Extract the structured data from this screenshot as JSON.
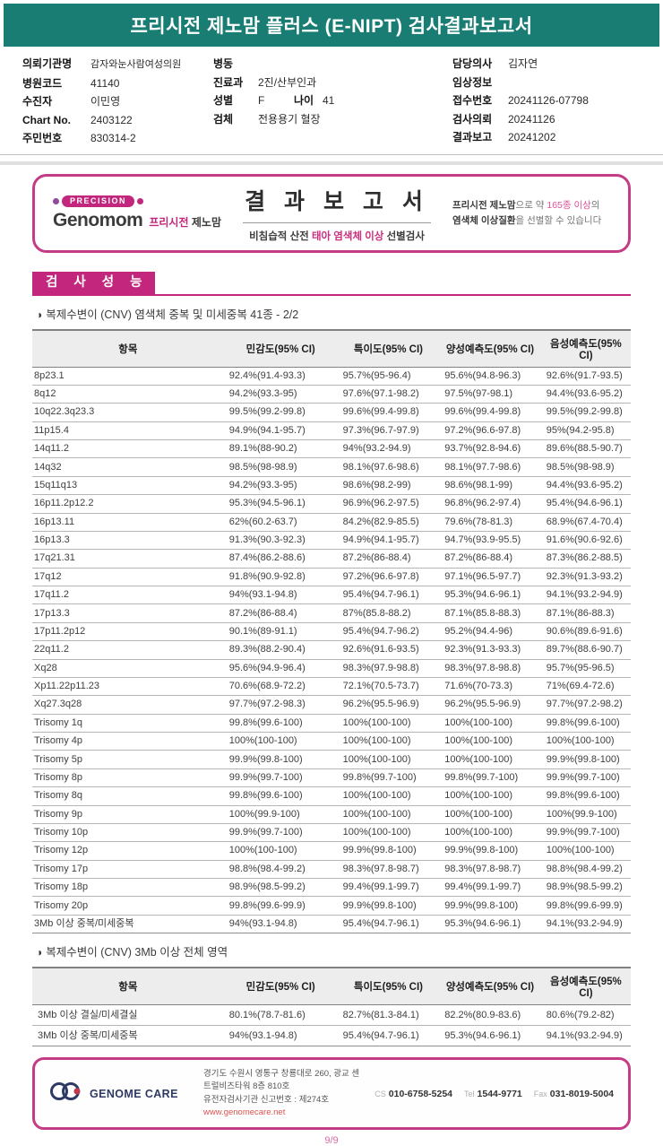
{
  "colors": {
    "header_teal": "#197d74",
    "brand_magenta": "#c2267d",
    "box_border_pink": "#c43c86",
    "highlight_pink": "#e0529c",
    "website_red": "#d9534f",
    "logo_navy": "#2e3a66"
  },
  "report": {
    "title": "프리시전 제노맘 플러스 (E-NIPT) 검사결과보고서",
    "page": "9/9"
  },
  "patient": {
    "col1": [
      {
        "label": "의뢰기관명",
        "value": "감자와눈사람여성의원"
      },
      {
        "label": "병원코드",
        "value": "41140"
      },
      {
        "label": "수진자",
        "value": "이민영"
      },
      {
        "label": "Chart No.",
        "value": "2403122"
      },
      {
        "label": "주민번호",
        "value": "830314-2"
      }
    ],
    "col2": [
      {
        "label": "병동",
        "value": ""
      },
      {
        "label": "진료과",
        "value": "2진/산부인과"
      },
      {
        "label": "성별",
        "value": "F",
        "label2": "나이",
        "value2": "41"
      },
      {
        "label": "검체",
        "value": "전용용기 혈장"
      }
    ],
    "col3": [
      {
        "label": "담당의사",
        "value": "김자연"
      },
      {
        "label": "임상정보",
        "value": ""
      },
      {
        "label": "접수번호",
        "value": "20241126-07798"
      },
      {
        "label": "검사의뢰",
        "value": "20241126"
      },
      {
        "label": "결과보고",
        "value": "20241202"
      }
    ]
  },
  "result_box": {
    "badge": "PRECISION",
    "brand_name": "Genomom",
    "brand_kr_magenta": "프리시전",
    "brand_kr_dark": "제노맘",
    "title": "결 과 보 고 서",
    "subtitle_prefix": "비침습적 산전 ",
    "subtitle_highlight": "태아 염색체 이상",
    "subtitle_suffix": " 선별검사",
    "promo_bold1": "프리시전 제노맘",
    "promo_text1": "으로 약 ",
    "promo_highlight": "165종 이상",
    "promo_text2": "의 ",
    "promo_bold2": "염색체 이상질환",
    "promo_text3": "을 선별할 수 있습니다"
  },
  "section": {
    "title": "검 사 성 능"
  },
  "table1": {
    "caption_bullet": "◑",
    "caption": "복제수변이 (CNV) 염색체 중복 및 미세중복 41종 - 2/2",
    "headers": [
      "항목",
      "민감도(95% CI)",
      "특이도(95% CI)",
      "양성예측도(95% CI)",
      "음성예측도(95% CI)"
    ],
    "rows": [
      [
        "8p23.1",
        "92.4%(91.4-93.3)",
        "95.7%(95-96.4)",
        "95.6%(94.8-96.3)",
        "92.6%(91.7-93.5)"
      ],
      [
        "8q12",
        "94.2%(93.3-95)",
        "97.6%(97.1-98.2)",
        "97.5%(97-98.1)",
        "94.4%(93.6-95.2)"
      ],
      [
        "10q22.3q23.3",
        "99.5%(99.2-99.8)",
        "99.6%(99.4-99.8)",
        "99.6%(99.4-99.8)",
        "99.5%(99.2-99.8)"
      ],
      [
        "11p15.4",
        "94.9%(94.1-95.7)",
        "97.3%(96.7-97.9)",
        "97.2%(96.6-97.8)",
        "95%(94.2-95.8)"
      ],
      [
        "14q11.2",
        "89.1%(88-90.2)",
        "94%(93.2-94.9)",
        "93.7%(92.8-94.6)",
        "89.6%(88.5-90.7)"
      ],
      [
        "14q32",
        "98.5%(98-98.9)",
        "98.1%(97.6-98.6)",
        "98.1%(97.7-98.6)",
        "98.5%(98-98.9)"
      ],
      [
        "15q11q13",
        "94.2%(93.3-95)",
        "98.6%(98.2-99)",
        "98.6%(98.1-99)",
        "94.4%(93.6-95.2)"
      ],
      [
        "16p11.2p12.2",
        "95.3%(94.5-96.1)",
        "96.9%(96.2-97.5)",
        "96.8%(96.2-97.4)",
        "95.4%(94.6-96.1)"
      ],
      [
        "16p13.11",
        "62%(60.2-63.7)",
        "84.2%(82.9-85.5)",
        "79.6%(78-81.3)",
        "68.9%(67.4-70.4)"
      ],
      [
        "16p13.3",
        "91.3%(90.3-92.3)",
        "94.9%(94.1-95.7)",
        "94.7%(93.9-95.5)",
        "91.6%(90.6-92.6)"
      ],
      [
        "17q21.31",
        "87.4%(86.2-88.6)",
        "87.2%(86-88.4)",
        "87.2%(86-88.4)",
        "87.3%(86.2-88.5)"
      ],
      [
        "17q12",
        "91.8%(90.9-92.8)",
        "97.2%(96.6-97.8)",
        "97.1%(96.5-97.7)",
        "92.3%(91.3-93.2)"
      ],
      [
        "17q11.2",
        "94%(93.1-94.8)",
        "95.4%(94.7-96.1)",
        "95.3%(94.6-96.1)",
        "94.1%(93.2-94.9)"
      ],
      [
        "17p13.3",
        "87.2%(86-88.4)",
        "87%(85.8-88.2)",
        "87.1%(85.8-88.3)",
        "87.1%(86-88.3)"
      ],
      [
        "17p11.2p12",
        "90.1%(89-91.1)",
        "95.4%(94.7-96.2)",
        "95.2%(94.4-96)",
        "90.6%(89.6-91.6)"
      ],
      [
        "22q11.2",
        "89.3%(88.2-90.4)",
        "92.6%(91.6-93.5)",
        "92.3%(91.3-93.3)",
        "89.7%(88.6-90.7)"
      ],
      [
        "Xq28",
        "95.6%(94.9-96.4)",
        "98.3%(97.9-98.8)",
        "98.3%(97.8-98.8)",
        "95.7%(95-96.5)"
      ],
      [
        "Xp11.22p11.23",
        "70.6%(68.9-72.2)",
        "72.1%(70.5-73.7)",
        "71.6%(70-73.3)",
        "71%(69.4-72.6)"
      ],
      [
        "Xq27.3q28",
        "97.7%(97.2-98.3)",
        "96.2%(95.5-96.9)",
        "96.2%(95.5-96.9)",
        "97.7%(97.2-98.2)"
      ],
      [
        "Trisomy 1q",
        "99.8%(99.6-100)",
        "100%(100-100)",
        "100%(100-100)",
        "99.8%(99.6-100)"
      ],
      [
        "Trisomy 4p",
        "100%(100-100)",
        "100%(100-100)",
        "100%(100-100)",
        "100%(100-100)"
      ],
      [
        "Trisomy 5p",
        "99.9%(99.8-100)",
        "100%(100-100)",
        "100%(100-100)",
        "99.9%(99.8-100)"
      ],
      [
        "Trisomy 8p",
        "99.9%(99.7-100)",
        "99.8%(99.7-100)",
        "99.8%(99.7-100)",
        "99.9%(99.7-100)"
      ],
      [
        "Trisomy 8q",
        "99.8%(99.6-100)",
        "100%(100-100)",
        "100%(100-100)",
        "99.8%(99.6-100)"
      ],
      [
        "Trisomy 9p",
        "100%(99.9-100)",
        "100%(100-100)",
        "100%(100-100)",
        "100%(99.9-100)"
      ],
      [
        "Trisomy 10p",
        "99.9%(99.7-100)",
        "100%(100-100)",
        "100%(100-100)",
        "99.9%(99.7-100)"
      ],
      [
        "Trisomy 12p",
        "100%(100-100)",
        "99.9%(99.8-100)",
        "99.9%(99.8-100)",
        "100%(100-100)"
      ],
      [
        "Trisomy 17p",
        "98.8%(98.4-99.2)",
        "98.3%(97.8-98.7)",
        "98.3%(97.8-98.7)",
        "98.8%(98.4-99.2)"
      ],
      [
        "Trisomy 18p",
        "98.9%(98.5-99.2)",
        "99.4%(99.1-99.7)",
        "99.4%(99.1-99.7)",
        "98.9%(98.5-99.2)"
      ],
      [
        "Trisomy 20p",
        "99.8%(99.6-99.9)",
        "99.9%(99.8-100)",
        "99.9%(99.8-100)",
        "99.8%(99.6-99.9)"
      ],
      [
        "3Mb 이상 중복/미세중복",
        "94%(93.1-94.8)",
        "95.4%(94.7-96.1)",
        "95.3%(94.6-96.1)",
        "94.1%(93.2-94.9)"
      ]
    ]
  },
  "table2": {
    "caption_bullet": "◑",
    "caption": "복제수변이 (CNV) 3Mb 이상 전체 영역",
    "headers": [
      "항목",
      "민감도(95% CI)",
      "특이도(95% CI)",
      "양성예측도(95% CI)",
      "음성예측도(95% CI)"
    ],
    "rows": [
      [
        "3Mb 이상 결실/미세결실",
        "80.1%(78.7-81.6)",
        "82.7%(81.3-84.1)",
        "82.2%(80.9-83.6)",
        "80.6%(79.2-82)"
      ],
      [
        "3Mb 이상 중복/미세중복",
        "94%(93.1-94.8)",
        "95.4%(94.7-96.1)",
        "95.3%(94.6-96.1)",
        "94.1%(93.2-94.9)"
      ]
    ]
  },
  "footer": {
    "logo_text": "GENOME CARE",
    "address_line1": "경기도 수원시 영통구 창룡대로 260, 광교 센트럴비즈타워 8층 810호",
    "address_line2": "유전자검사기관 신고번호 : 제274호",
    "website": "www.genomecare.net",
    "contacts": [
      {
        "label": "CS",
        "value": "010-6758-5254"
      },
      {
        "label": "Tel",
        "value": "1544-9771"
      },
      {
        "label": "Fax",
        "value": "031-8019-5004"
      }
    ]
  }
}
